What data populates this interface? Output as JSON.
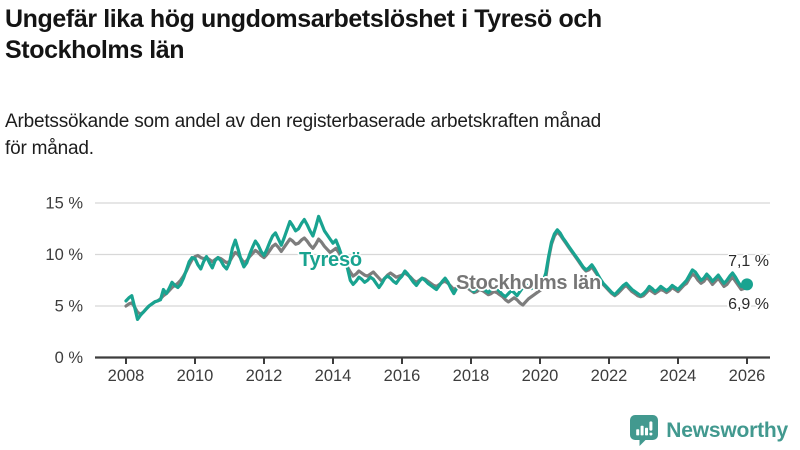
{
  "header": {
    "title_lines": [
      "Ungefär lika hög ungdomsarbetslöshet i Tyresö och",
      "Stockholms län"
    ],
    "subtitle_lines": [
      "Arbetssökande som andel av den registerbaserade arbetskraften månad",
      "för månad."
    ]
  },
  "colors": {
    "accent_teal": "#19a390",
    "series_gray": "#7d7d7d",
    "gridline": "#d8d8d8",
    "axis": "#3d3d3d",
    "tick_text": "#3d3d3d",
    "logo_teal": "#42998f",
    "title_text": "#141414"
  },
  "chart_data": {
    "type": "line",
    "title": "Ungefär lika hög ungdomsarbetslöshet i Tyresö och Stockholms län",
    "subtitle": "Arbetssökande som andel av den registerbaserade arbetskraften månad för månad.",
    "xlabel": "",
    "ylabel": "",
    "ylim": [
      0,
      15
    ],
    "x_start_year": 2008,
    "x_end_year": 2026,
    "x_unit": "month",
    "grid": "horizontal",
    "legend_position": "inline-labels",
    "y_ticks": [
      {
        "label": "15 %",
        "value": 15
      },
      {
        "label": "10 %",
        "value": 10
      },
      {
        "label": "5 %",
        "value": 5
      },
      {
        "label": "0 %",
        "value": 0
      }
    ],
    "x_ticks": [
      {
        "label": "2008",
        "year": 2008
      },
      {
        "label": "2010",
        "year": 2010
      },
      {
        "label": "2012",
        "year": 2012
      },
      {
        "label": "2014",
        "year": 2014
      },
      {
        "label": "2016",
        "year": 2016
      },
      {
        "label": "2018",
        "year": 2018
      },
      {
        "label": "2020",
        "year": 2020
      },
      {
        "label": "2022",
        "year": 2022
      },
      {
        "label": "2024",
        "year": 2024
      },
      {
        "label": "2026",
        "year": 2026
      }
    ],
    "series": [
      {
        "name": "Stockholms län",
        "color": "#7d7d7d",
        "end_label": "6,9 %",
        "end_value": 6.9,
        "values": [
          5.0,
          5.2,
          5.3,
          4.9,
          4.4,
          4.2,
          4.4,
          4.7,
          5.0,
          5.2,
          5.4,
          5.5,
          5.7,
          6.0,
          6.2,
          6.5,
          6.8,
          7.0,
          7.2,
          7.5,
          7.9,
          8.4,
          9.0,
          9.5,
          9.8,
          9.9,
          9.7,
          9.6,
          9.7,
          9.5,
          9.3,
          9.5,
          9.7,
          9.6,
          9.4,
          9.2,
          9.3,
          9.8,
          10.2,
          10.0,
          9.6,
          9.2,
          9.4,
          9.8,
          10.1,
          10.4,
          10.2,
          9.9,
          9.7,
          10.0,
          10.4,
          10.8,
          11.0,
          10.7,
          10.3,
          10.7,
          11.1,
          11.5,
          11.3,
          11.0,
          11.1,
          11.4,
          11.6,
          11.3,
          10.9,
          10.6,
          11.0,
          11.5,
          11.2,
          10.8,
          10.5,
          10.2,
          10.4,
          10.6,
          10.2,
          9.7,
          9.2,
          8.8,
          8.3,
          7.9,
          8.1,
          8.4,
          8.2,
          8.0,
          7.9,
          8.1,
          8.3,
          8.0,
          7.7,
          7.4,
          7.7,
          8.0,
          8.2,
          8.0,
          7.8,
          7.9,
          8.0,
          8.2,
          8.0,
          7.8,
          7.5,
          7.3,
          7.5,
          7.7,
          7.6,
          7.4,
          7.2,
          7.0,
          6.9,
          7.1,
          7.3,
          7.4,
          7.2,
          6.9,
          6.6,
          6.8,
          7.0,
          7.1,
          6.9,
          6.7,
          6.5,
          6.3,
          6.4,
          6.6,
          6.5,
          6.3,
          6.1,
          6.2,
          6.4,
          6.3,
          6.1,
          5.9,
          5.6,
          5.4,
          5.6,
          5.8,
          5.6,
          5.3,
          5.1,
          5.4,
          5.7,
          5.9,
          6.1,
          6.3,
          6.5,
          6.8,
          7.8,
          9.6,
          11.0,
          11.8,
          12.2,
          11.9,
          11.5,
          11.1,
          10.7,
          10.3,
          9.9,
          9.5,
          9.1,
          8.7,
          8.4,
          8.5,
          8.8,
          8.4,
          8.0,
          7.5,
          7.1,
          6.8,
          6.5,
          6.2,
          6.0,
          6.2,
          6.5,
          6.8,
          7.0,
          6.7,
          6.4,
          6.2,
          6.0,
          5.9,
          6.0,
          6.3,
          6.6,
          6.4,
          6.2,
          6.4,
          6.6,
          6.5,
          6.3,
          6.5,
          6.8,
          6.6,
          6.4,
          6.7,
          7.0,
          7.2,
          7.7,
          8.1,
          7.9,
          7.5,
          7.2,
          7.4,
          7.8,
          7.5,
          7.1,
          7.4,
          7.7,
          7.3,
          6.9,
          7.1,
          7.5,
          7.8,
          7.4,
          7.0,
          6.6,
          6.7,
          6.9
        ]
      },
      {
        "name": "Tyresö",
        "color": "#19a390",
        "end_label": "7,1 %",
        "end_value": 7.1,
        "end_dot": true,
        "values": [
          5.5,
          5.8,
          6.0,
          4.9,
          3.7,
          4.1,
          4.4,
          4.7,
          5.0,
          5.2,
          5.4,
          5.5,
          5.6,
          6.6,
          6.2,
          6.7,
          7.3,
          7.0,
          6.8,
          7.1,
          7.7,
          8.5,
          9.3,
          9.7,
          9.6,
          9.0,
          8.6,
          9.3,
          9.8,
          9.2,
          8.7,
          9.4,
          9.7,
          9.4,
          8.9,
          8.6,
          9.2,
          10.6,
          11.4,
          10.5,
          9.5,
          8.8,
          9.2,
          10.0,
          10.7,
          11.3,
          10.9,
          10.3,
          9.9,
          10.5,
          11.2,
          11.8,
          12.1,
          11.5,
          10.9,
          11.6,
          12.4,
          13.2,
          12.8,
          12.3,
          12.5,
          13.0,
          13.4,
          12.9,
          12.3,
          11.8,
          12.7,
          13.7,
          13.0,
          12.3,
          11.9,
          11.5,
          11.1,
          11.4,
          10.7,
          9.9,
          9.3,
          8.7,
          7.5,
          7.1,
          7.4,
          7.8,
          7.6,
          7.3,
          7.5,
          7.8,
          7.6,
          7.2,
          6.8,
          7.2,
          7.7,
          7.9,
          7.7,
          7.4,
          7.2,
          7.6,
          7.9,
          8.4,
          8.1,
          7.7,
          7.3,
          7.0,
          7.4,
          7.7,
          7.5,
          7.2,
          7.0,
          6.8,
          6.6,
          7.0,
          7.4,
          7.7,
          7.3,
          6.7,
          6.2,
          6.7,
          7.2,
          7.5,
          7.3,
          7.0,
          6.7,
          6.4,
          6.7,
          7.0,
          6.8,
          6.5,
          6.3,
          6.6,
          6.9,
          6.7,
          6.4,
          6.1,
          5.9,
          6.2,
          6.5,
          6.3,
          6.0,
          6.4,
          6.8,
          7.1,
          6.9,
          6.7,
          7.0,
          7.2,
          7.1,
          7.3,
          8.2,
          9.8,
          11.2,
          12.0,
          12.4,
          12.1,
          11.6,
          11.2,
          10.8,
          10.4,
          10.0,
          9.6,
          9.2,
          8.8,
          8.5,
          8.7,
          9.0,
          8.6,
          8.1,
          7.6,
          7.2,
          6.9,
          6.6,
          6.3,
          6.1,
          6.4,
          6.7,
          7.0,
          7.2,
          6.9,
          6.6,
          6.4,
          6.2,
          6.0,
          6.2,
          6.5,
          6.9,
          6.7,
          6.4,
          6.6,
          6.9,
          6.7,
          6.5,
          6.7,
          7.0,
          6.8,
          6.6,
          6.9,
          7.2,
          7.5,
          8.0,
          8.5,
          8.3,
          7.9,
          7.5,
          7.7,
          8.1,
          7.8,
          7.4,
          7.7,
          8.0,
          7.6,
          7.2,
          7.5,
          7.9,
          8.2,
          7.8,
          7.3,
          6.9,
          7.0,
          7.1
        ]
      }
    ]
  },
  "footer": {
    "brand": "Newsworthy"
  }
}
